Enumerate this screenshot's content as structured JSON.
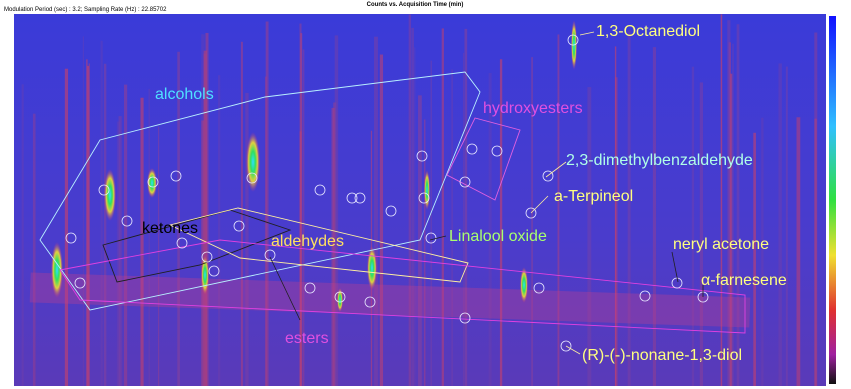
{
  "header": {
    "title": "Counts vs. Acquisition Time (min)",
    "subtitle": "Modulation Period (sec) : 3.2; Sampling Rate (Hz) : 22.85702"
  },
  "annotations": {
    "alcohols": "alcohols",
    "hydroxyesters": "hydroxyesters",
    "ketones": "ketones",
    "aldehydes": "aldehydes",
    "esters": "esters",
    "linalool_oxide": "Linalool oxide",
    "octanediol": "1,3-Octanediol",
    "dimethylbenzaldehyde": "2,3-dimethylbenzaldehyde",
    "terpineol": "a-Terpineol",
    "neryl_acetone": "neryl acetone",
    "farnesene": "α-farnesene",
    "nonanediol": "(R)-(-)-nonane-1,3-diol"
  }
}
